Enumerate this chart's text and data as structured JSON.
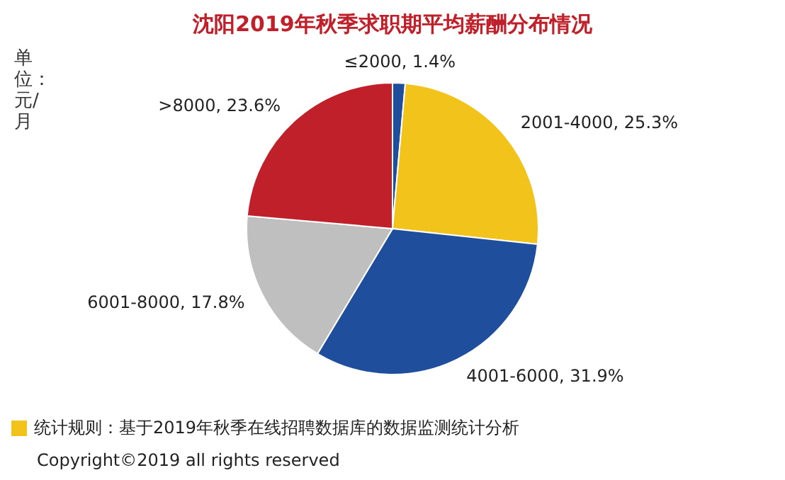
{
  "chart_data": {
    "type": "pie",
    "title": "沈阳2019年秋季求职期平均薪酬分布情况",
    "categories": [
      "≤2000",
      "2001-4000",
      "4001-6000",
      "6001-8000",
      ">8000"
    ],
    "values": [
      1.4,
      25.3,
      31.9,
      17.8,
      23.6
    ],
    "value_labels": [
      "1.4%",
      "25.3%",
      "31.9%",
      "17.8%",
      "23.6%"
    ],
    "colors": [
      "#1f4e9c",
      "#f2c31b",
      "#1f4e9c",
      "#bfbfbf",
      "#c0202a"
    ],
    "legend": false,
    "annotations": [
      "单位：元/月",
      "统计规则：基于2019年秋季在线招聘数据库的数据监测统计分析",
      "Copyright©2019 all rights reserved"
    ]
  }
}
